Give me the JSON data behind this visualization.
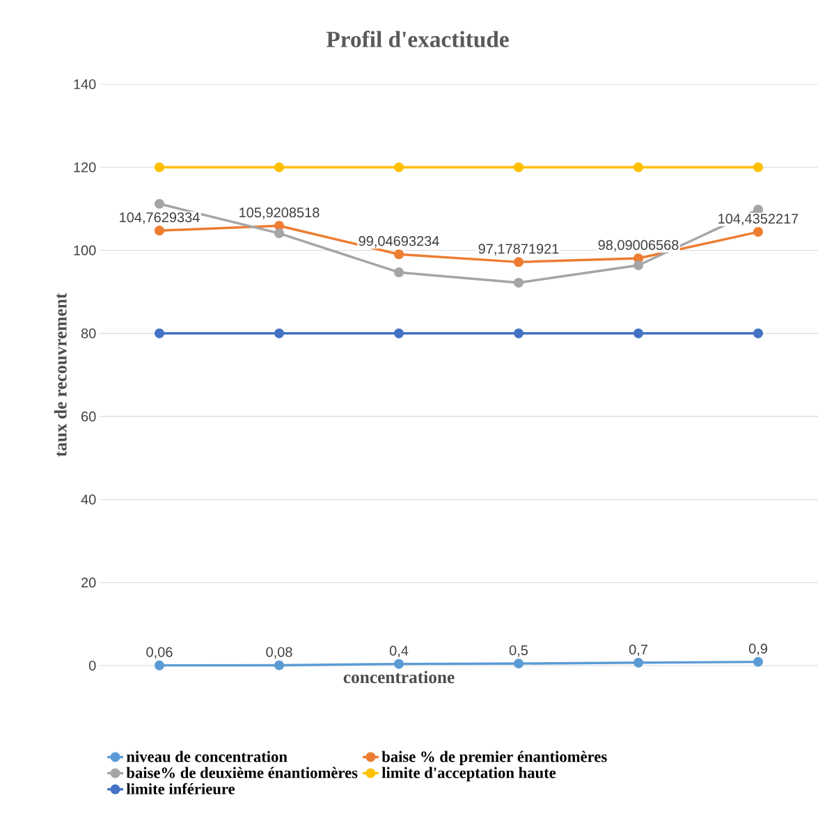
{
  "chart_data": {
    "type": "line",
    "title": "Profil d'exactitude",
    "xlabel": "concentratione",
    "ylabel": "taux de recouvrement",
    "categories": [
      null,
      null,
      null,
      null,
      null,
      null
    ],
    "series": [
      {
        "name": "niveau de concentration",
        "color": "#5b9bd5",
        "values": [
          0.06,
          0.08,
          0.4,
          0.5,
          0.7,
          0.9
        ],
        "value_labels": [
          "0,06",
          "0,08",
          "0,4",
          "0,5",
          "0,7",
          "0,9"
        ]
      },
      {
        "name": "baise % de premier énantiomères",
        "color": "#ed7d31",
        "values": [
          104.7629334,
          105.9208518,
          99.04693234,
          97.17871921,
          98.09006568,
          104.4352217
        ],
        "value_labels": [
          "104,7629334",
          "105,9208518",
          "99,04693234",
          "97,17871921",
          "98,09006568",
          "104,4352217"
        ]
      },
      {
        "name": "baise% de deuxième énantiomères",
        "color": "#a5a5a5",
        "values": [
          111.2,
          104.1,
          94.7,
          92.2,
          96.4,
          109.8
        ]
      },
      {
        "name": "limite d'acceptation haute",
        "color": "#ffc000",
        "values": [
          120,
          120,
          120,
          120,
          120,
          120
        ]
      },
      {
        "name": "limite inférieure",
        "color": "#4472c4",
        "values": [
          80,
          80,
          80,
          80,
          80,
          80
        ]
      }
    ],
    "ylim": [
      0,
      140
    ],
    "yticks": [
      0,
      20,
      40,
      60,
      80,
      100,
      120,
      140
    ],
    "grid": "y",
    "legend": "bottom",
    "marker": "circle",
    "tick_labels": "y"
  }
}
